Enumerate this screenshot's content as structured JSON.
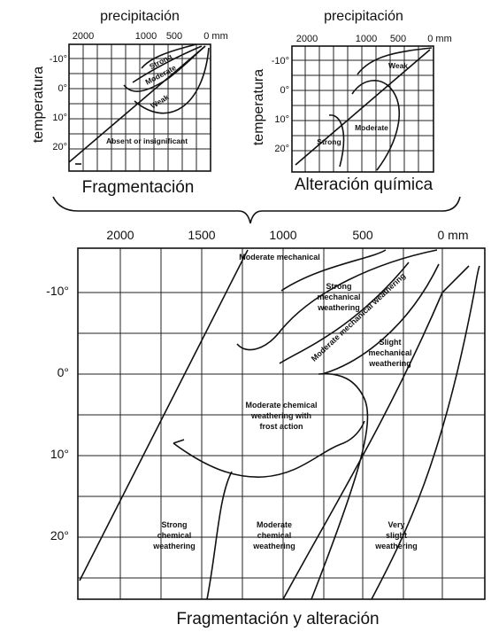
{
  "top_left": {
    "axis_title": "precipitación",
    "y_title": "temperatura",
    "x_ticks": [
      "2000",
      "1000",
      "500",
      "0 mm"
    ],
    "y_ticks": [
      "-10°",
      "0°",
      "10°",
      "20°"
    ],
    "regions": [
      "Strong",
      "Moderate",
      "Weak",
      "Absent or insignificant"
    ],
    "caption": "Fragmentación"
  },
  "top_right": {
    "axis_title": "precipitación",
    "y_title": "temperatura",
    "x_ticks": [
      "2000",
      "1000",
      "500",
      "0 mm"
    ],
    "y_ticks": [
      "-10°",
      "0°",
      "10°",
      "20°"
    ],
    "regions": [
      "Weak",
      "Moderate",
      "Strong"
    ],
    "caption": "Alteración química"
  },
  "bottom": {
    "x_ticks": [
      "2000",
      "1500",
      "1000",
      "500",
      "0 mm"
    ],
    "y_ticks": [
      "-10°",
      "0°",
      "10°",
      "20°"
    ],
    "regions": [
      [
        "Moderate mechanical"
      ],
      [
        "Strong",
        "mechanical",
        "weathering"
      ],
      [
        "Moderate mechanical weathering"
      ],
      [
        "Slight",
        "mechanical",
        "weathering"
      ],
      [
        "Moderate chemical",
        "weathering with",
        "frost action"
      ],
      [
        "Strong",
        "chemical",
        "weathering"
      ],
      [
        "Moderate",
        "chemical",
        "weathering"
      ],
      [
        "Very",
        "slight",
        "weathering"
      ]
    ],
    "caption": "Fragmentación y alteración"
  }
}
